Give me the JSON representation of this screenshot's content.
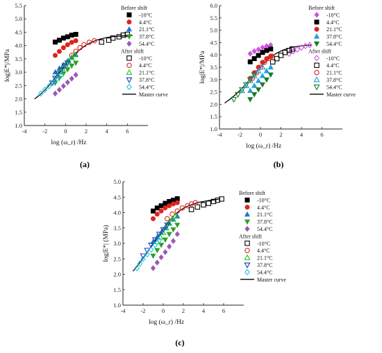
{
  "chart_data": [
    {
      "type": "scatter",
      "caption": "(a)",
      "xlabel": "log (ω_r) /Hz",
      "ylabel": "log|E*|/MPa",
      "xlim": [
        -4,
        8
      ],
      "ylim": [
        1.0,
        5.5
      ],
      "xticks": [
        -4,
        -2,
        0,
        2,
        4,
        6
      ],
      "yticks": [
        1.0,
        1.5,
        2.0,
        2.5,
        3.0,
        3.5,
        4.0,
        4.5,
        5.0,
        5.5
      ],
      "legend_header_before": "Before shift",
      "legend_header_after": "After shift",
      "legend_master": "Master curve",
      "series_before": [
        {
          "name": "-10°C",
          "color": "#000000",
          "marker": "square",
          "filled": true,
          "x": [
            -1.0,
            -0.6,
            -0.2,
            0.2,
            0.6,
            1.0
          ],
          "y": [
            4.13,
            4.2,
            4.28,
            4.33,
            4.39,
            4.42
          ]
        },
        {
          "name": "4.4°C",
          "color": "#e0231c",
          "marker": "circle",
          "filled": true,
          "x": [
            -1.0,
            -0.6,
            -0.2,
            0.2,
            0.6,
            1.0
          ],
          "y": [
            3.63,
            3.78,
            3.92,
            4.03,
            4.12,
            4.18
          ]
        },
        {
          "name": "21.1°C",
          "color": "#1f77d4",
          "marker": "triangle",
          "filled": true,
          "x": [
            -1.0,
            -0.6,
            -0.2,
            0.2,
            0.6,
            1.0
          ],
          "y": [
            3.0,
            3.14,
            3.28,
            3.42,
            3.55,
            3.65
          ]
        },
        {
          "name": "37.8°C",
          "color": "#2ca02c",
          "marker": "triangle-down",
          "filled": true,
          "x": [
            -1.0,
            -0.6,
            -0.2,
            0.2,
            0.6,
            1.0
          ],
          "y": [
            2.6,
            2.78,
            2.95,
            3.1,
            3.24,
            3.35
          ]
        },
        {
          "name": "54.4°C",
          "color": "#9b59b6",
          "marker": "diamond",
          "filled": true,
          "x": [
            -1.0,
            -0.6,
            -0.2,
            0.2,
            0.6,
            1.0
          ],
          "y": [
            2.2,
            2.34,
            2.48,
            2.62,
            2.76,
            2.9
          ]
        }
      ],
      "series_after": [
        {
          "name": "-10°C",
          "color": "#000000",
          "marker": "square",
          "filled": false,
          "x": [
            3.5,
            4.2,
            4.6,
            5.2,
            5.6,
            6.0
          ],
          "y": [
            4.13,
            4.2,
            4.28,
            4.33,
            4.39,
            4.42
          ]
        },
        {
          "name": "4.4°C",
          "color": "#e0231c",
          "marker": "circle",
          "filled": false,
          "x": [
            0.6,
            1.0,
            1.4,
            1.8,
            2.3,
            2.8
          ],
          "y": [
            3.63,
            3.78,
            3.92,
            4.03,
            4.12,
            4.18
          ]
        },
        {
          "name": "21.1°C",
          "color": "#22cc22",
          "marker": "triangle",
          "filled": false,
          "x": [
            -0.6,
            -0.3,
            0.0,
            0.3,
            0.6,
            0.9
          ],
          "y": [
            3.0,
            3.14,
            3.28,
            3.42,
            3.55,
            3.65
          ]
        },
        {
          "name": "37.8°C",
          "color": "#1f3fbf",
          "marker": "triangle-down",
          "filled": false,
          "x": [
            -1.3,
            -1.0,
            -0.7,
            -0.4,
            -0.1,
            0.2
          ],
          "y": [
            2.6,
            2.78,
            2.95,
            3.1,
            3.24,
            3.35
          ]
        },
        {
          "name": "54.4°C",
          "color": "#22c5e0",
          "marker": "diamond",
          "filled": false,
          "x": [
            -2.4,
            -2.0,
            -1.6,
            -1.2,
            -0.8,
            -0.4
          ],
          "y": [
            2.2,
            2.34,
            2.48,
            2.62,
            2.76,
            2.9
          ]
        }
      ],
      "master_curve": {
        "x": [
          -3.0,
          -2.5,
          -2.0,
          -1.5,
          -1.0,
          -0.5,
          0.0,
          0.5,
          1.0,
          1.5,
          2.0,
          2.5,
          3.0,
          3.5,
          4.0,
          4.5,
          5.0,
          5.5,
          6.0,
          6.5
        ],
        "y": [
          2.0,
          2.15,
          2.33,
          2.55,
          2.8,
          3.05,
          3.3,
          3.52,
          3.72,
          3.88,
          4.02,
          4.12,
          4.2,
          4.26,
          4.3,
          4.33,
          4.35,
          4.36,
          4.37,
          4.38
        ]
      }
    },
    {
      "type": "scatter",
      "caption": "(b)",
      "xlabel": "log (ω_r) /Hz",
      "ylabel": "log|E*|/MPa",
      "xlim": [
        -4,
        8
      ],
      "ylim": [
        1.0,
        6.0
      ],
      "xticks": [
        -4,
        -2,
        0,
        2,
        4,
        6
      ],
      "yticks": [
        1.0,
        1.5,
        2.0,
        2.5,
        3.0,
        3.5,
        4.0,
        4.5,
        5.0,
        5.5,
        6.0
      ],
      "legend_header_before": "Before shift",
      "legend_header_after": "After shift",
      "legend_master": "Master curve",
      "series_before": [
        {
          "name": "-10°C",
          "color": "#cc55dd",
          "marker": "diamond",
          "filled": true,
          "x": [
            -1.0,
            -0.6,
            -0.2,
            0.2,
            0.6,
            1.0
          ],
          "y": [
            4.05,
            4.15,
            4.22,
            4.3,
            4.36,
            4.4
          ]
        },
        {
          "name": "4.4°C",
          "color": "#000000",
          "marker": "square",
          "filled": true,
          "x": [
            -1.0,
            -0.6,
            -0.2,
            0.2,
            0.6,
            1.0
          ],
          "y": [
            3.72,
            3.85,
            3.98,
            4.1,
            4.18,
            4.24
          ]
        },
        {
          "name": "21.1°C",
          "color": "#e0231c",
          "marker": "circle",
          "filled": true,
          "x": [
            -1.0,
            -0.6,
            -0.2,
            0.2,
            0.6,
            1.0
          ],
          "y": [
            3.05,
            3.28,
            3.5,
            3.7,
            3.85,
            3.95
          ]
        },
        {
          "name": "37.8°C",
          "color": "#1fa0e0",
          "marker": "triangle",
          "filled": true,
          "x": [
            -1.0,
            -0.6,
            -0.2,
            0.2,
            0.6,
            1.0
          ],
          "y": [
            2.55,
            2.75,
            2.95,
            3.15,
            3.35,
            3.5
          ]
        },
        {
          "name": "54.4°C",
          "color": "#1a7a2a",
          "marker": "triangle-down",
          "filled": true,
          "x": [
            -1.0,
            -0.6,
            -0.2,
            0.2,
            0.6,
            1.0
          ],
          "y": [
            2.2,
            2.4,
            2.6,
            2.8,
            3.0,
            3.2
          ]
        }
      ],
      "series_after": [
        {
          "name": "-10°C",
          "color": "#cc55dd",
          "marker": "diamond",
          "filled": false,
          "x": [
            2.8,
            3.2,
            3.6,
            4.0,
            4.4,
            4.8
          ],
          "y": [
            4.05,
            4.15,
            4.22,
            4.3,
            4.36,
            4.4
          ]
        },
        {
          "name": "4.4°C",
          "color": "#000000",
          "marker": "square",
          "filled": false,
          "x": [
            1.2,
            1.6,
            2.0,
            2.4,
            2.8,
            3.1
          ],
          "y": [
            3.72,
            3.85,
            3.98,
            4.1,
            4.18,
            4.24
          ]
        },
        {
          "name": "21.1°C",
          "color": "#e0231c",
          "marker": "circle",
          "filled": false,
          "x": [
            -0.8,
            -0.4,
            0.0,
            0.4,
            0.8,
            1.1
          ],
          "y": [
            3.05,
            3.28,
            3.5,
            3.7,
            3.85,
            3.95
          ]
        },
        {
          "name": "37.8°C",
          "color": "#1fa0e0",
          "marker": "triangle",
          "filled": false,
          "x": [
            -1.8,
            -1.4,
            -1.0,
            -0.6,
            -0.2,
            0.2
          ],
          "y": [
            2.55,
            2.75,
            2.95,
            3.15,
            3.35,
            3.5
          ]
        },
        {
          "name": "54.4°C",
          "color": "#1a7a2a",
          "marker": "triangle-down",
          "filled": false,
          "x": [
            -2.6,
            -2.2,
            -1.8,
            -1.4,
            -1.0,
            -0.6
          ],
          "y": [
            2.2,
            2.4,
            2.6,
            2.8,
            3.0,
            3.2
          ]
        }
      ],
      "master_curve": {
        "x": [
          -3.5,
          -3.0,
          -2.5,
          -2.0,
          -1.5,
          -1.0,
          -0.5,
          0.0,
          0.5,
          1.0,
          1.5,
          2.0,
          2.5,
          3.0,
          3.5,
          4.0,
          4.5,
          5.0
        ],
        "y": [
          2.05,
          2.2,
          2.37,
          2.56,
          2.78,
          3.02,
          3.26,
          3.5,
          3.72,
          3.9,
          4.05,
          4.16,
          4.24,
          4.3,
          4.34,
          4.37,
          4.39,
          4.4
        ]
      }
    },
    {
      "type": "scatter",
      "caption": "(c)",
      "xlabel": "log (ω_r) /Hz",
      "ylabel": "log|E*| (MPa)",
      "xlim": [
        -4,
        8
      ],
      "ylim": [
        1.0,
        5.0
      ],
      "xticks": [
        -4,
        -2,
        0,
        2,
        4,
        6
      ],
      "yticks": [
        1.0,
        1.5,
        2.0,
        2.5,
        3.0,
        3.5,
        4.0,
        4.5,
        5.0
      ],
      "legend_header_before": "Before shift",
      "legend_header_after": "After shift",
      "legend_master": "Master curve",
      "series_before": [
        {
          "name": "-10°C",
          "color": "#000000",
          "marker": "square",
          "filled": true,
          "x": [
            -1.0,
            -0.6,
            -0.2,
            0.2,
            0.6,
            1.0,
            1.4
          ],
          "y": [
            4.05,
            4.15,
            4.22,
            4.3,
            4.36,
            4.4,
            4.45
          ]
        },
        {
          "name": "4.4°C",
          "color": "#e0231c",
          "marker": "circle",
          "filled": true,
          "x": [
            -1.0,
            -0.6,
            -0.2,
            0.2,
            0.6,
            1.0,
            1.4
          ],
          "y": [
            3.8,
            3.95,
            4.05,
            4.15,
            4.22,
            4.28,
            4.32
          ]
        },
        {
          "name": "21.1°C",
          "color": "#1f77d4",
          "marker": "triangle",
          "filled": true,
          "x": [
            -1.0,
            -0.6,
            -0.2,
            0.2,
            0.6,
            1.0,
            1.4
          ],
          "y": [
            3.05,
            3.2,
            3.35,
            3.5,
            3.65,
            3.78,
            3.88
          ]
        },
        {
          "name": "37.8°C",
          "color": "#2ca02c",
          "marker": "triangle-down",
          "filled": true,
          "x": [
            -1.0,
            -0.6,
            -0.2,
            0.2,
            0.6,
            1.0,
            1.4
          ],
          "y": [
            2.6,
            2.78,
            2.95,
            3.12,
            3.3,
            3.45,
            3.6
          ]
        },
        {
          "name": "54.4°C",
          "color": "#9b59b6",
          "marker": "diamond",
          "filled": true,
          "x": [
            -1.0,
            -0.6,
            -0.2,
            0.2,
            0.6,
            1.0,
            1.4
          ],
          "y": [
            2.2,
            2.38,
            2.55,
            2.72,
            2.9,
            3.08,
            3.3
          ]
        }
      ],
      "series_after": [
        {
          "name": "-10°C",
          "color": "#000000",
          "marker": "square",
          "filled": false,
          "x": [
            2.8,
            3.4,
            4.0,
            4.5,
            5.0,
            5.4,
            5.8
          ],
          "y": [
            4.1,
            4.18,
            4.25,
            4.3,
            4.36,
            4.4,
            4.44
          ]
        },
        {
          "name": "4.4°C",
          "color": "#e0231c",
          "marker": "circle",
          "filled": false,
          "x": [
            0.4,
            0.9,
            1.4,
            1.9,
            2.4,
            2.8,
            3.2
          ],
          "y": [
            3.8,
            3.95,
            4.05,
            4.15,
            4.22,
            4.28,
            4.32
          ]
        },
        {
          "name": "21.1°C",
          "color": "#22cc22",
          "marker": "triangle",
          "filled": false,
          "x": [
            -0.6,
            -0.3,
            0.0,
            0.3,
            0.6,
            0.9,
            1.2
          ],
          "y": [
            3.05,
            3.2,
            3.35,
            3.5,
            3.65,
            3.78,
            3.88
          ]
        },
        {
          "name": "37.8°C",
          "color": "#1f3fbf",
          "marker": "triangle-down",
          "filled": false,
          "x": [
            -2.0,
            -1.6,
            -1.2,
            -0.8,
            -0.4,
            0.0,
            0.4
          ],
          "y": [
            2.6,
            2.78,
            2.95,
            3.12,
            3.3,
            3.45,
            3.6
          ]
        },
        {
          "name": "54.4°C",
          "color": "#22c5e0",
          "marker": "diamond",
          "filled": false,
          "x": [
            -2.6,
            -2.3,
            -2.0,
            -1.6,
            -1.2,
            -0.8,
            -0.4
          ],
          "y": [
            2.2,
            2.35,
            2.5,
            2.65,
            2.8,
            2.95,
            3.1
          ]
        }
      ],
      "master_curve": {
        "x": [
          -3.0,
          -2.5,
          -2.0,
          -1.5,
          -1.0,
          -0.5,
          0.0,
          0.5,
          1.0,
          1.5,
          2.0,
          2.5,
          3.0,
          3.5,
          4.0,
          4.5,
          5.0,
          5.5
        ],
        "y": [
          2.1,
          2.3,
          2.52,
          2.76,
          3.0,
          3.25,
          3.48,
          3.7,
          3.88,
          4.03,
          4.14,
          4.22,
          4.28,
          4.33,
          4.36,
          4.39,
          4.41,
          4.43
        ]
      }
    }
  ]
}
